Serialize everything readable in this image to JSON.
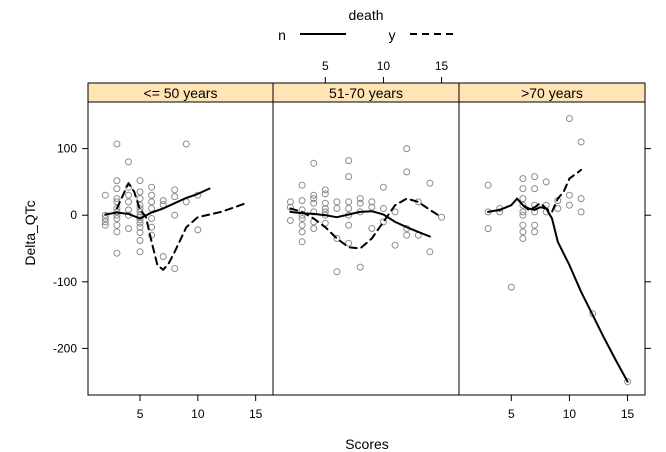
{
  "chart_data": {
    "type": "scatter",
    "xlabel": "Scores",
    "ylabel": "Delta_QTc",
    "xlim": [
      0.5,
      16.5
    ],
    "ylim": [
      -270,
      170
    ],
    "xticks": [
      5,
      10,
      15
    ],
    "yticks": [
      -200,
      -100,
      0,
      100
    ],
    "legend": {
      "title": "death",
      "position": "top",
      "entries": [
        {
          "label": "n",
          "style": "solid"
        },
        {
          "label": "y",
          "style": "dashed"
        }
      ]
    },
    "panels": [
      {
        "label": "<= 50 years",
        "points": [
          [
            2,
            30
          ],
          [
            2,
            0
          ],
          [
            2,
            -10
          ],
          [
            2,
            -15
          ],
          [
            2,
            -5
          ],
          [
            3,
            107
          ],
          [
            3,
            52
          ],
          [
            3,
            40
          ],
          [
            3,
            25
          ],
          [
            3,
            20
          ],
          [
            3,
            10
          ],
          [
            3,
            5
          ],
          [
            3,
            0
          ],
          [
            3,
            -5
          ],
          [
            3,
            -15
          ],
          [
            3,
            -25
          ],
          [
            3,
            -57
          ],
          [
            4,
            80
          ],
          [
            4,
            42
          ],
          [
            4,
            30
          ],
          [
            4,
            20
          ],
          [
            4,
            8
          ],
          [
            4,
            0
          ],
          [
            4,
            -20
          ],
          [
            5,
            52
          ],
          [
            5,
            35
          ],
          [
            5,
            25
          ],
          [
            5,
            15
          ],
          [
            5,
            10
          ],
          [
            5,
            5
          ],
          [
            5,
            0
          ],
          [
            5,
            -3
          ],
          [
            5,
            -7
          ],
          [
            5,
            -12
          ],
          [
            5,
            -18
          ],
          [
            5,
            -26
          ],
          [
            5,
            -38
          ],
          [
            5,
            -55
          ],
          [
            6,
            42
          ],
          [
            6,
            30
          ],
          [
            6,
            20
          ],
          [
            6,
            10
          ],
          [
            6,
            -5
          ],
          [
            6,
            -18
          ],
          [
            6,
            -30
          ],
          [
            7,
            22
          ],
          [
            7,
            16
          ],
          [
            7,
            -62
          ],
          [
            8,
            38
          ],
          [
            8,
            28
          ],
          [
            8,
            0
          ],
          [
            8,
            -80
          ],
          [
            9,
            107
          ],
          [
            9,
            20
          ],
          [
            10,
            30
          ],
          [
            10,
            -22
          ]
        ],
        "series": [
          {
            "name": "n",
            "style": "solid",
            "points": [
              [
                2,
                1
              ],
              [
                3,
                4
              ],
              [
                4,
                2
              ],
              [
                5,
                -5
              ],
              [
                6,
                4
              ],
              [
                7,
                10
              ],
              [
                8,
                18
              ],
              [
                9,
                26
              ],
              [
                10,
                32
              ],
              [
                11,
                40
              ]
            ]
          },
          {
            "name": "y",
            "style": "dashed",
            "points": [
              [
                3,
                10
              ],
              [
                4,
                48
              ],
              [
                4.5,
                35
              ],
              [
                5,
                8
              ],
              [
                5.5,
                -2
              ],
              [
                6,
                -40
              ],
              [
                6.5,
                -75
              ],
              [
                7,
                -82
              ],
              [
                7.5,
                -72
              ],
              [
                8,
                -55
              ],
              [
                9,
                -18
              ],
              [
                10,
                -3
              ],
              [
                12,
                5
              ],
              [
                14,
                17
              ]
            ]
          }
        ]
      },
      {
        "label": "51-70 years",
        "points": [
          [
            2,
            20
          ],
          [
            2,
            12
          ],
          [
            2,
            -8
          ],
          [
            3,
            45
          ],
          [
            3,
            22
          ],
          [
            3,
            8
          ],
          [
            3,
            0
          ],
          [
            3,
            -5
          ],
          [
            3,
            -15
          ],
          [
            3,
            -25
          ],
          [
            3,
            -40
          ],
          [
            4,
            78
          ],
          [
            4,
            30
          ],
          [
            4,
            25
          ],
          [
            4,
            18
          ],
          [
            4,
            5
          ],
          [
            4,
            -10
          ],
          [
            4,
            -20
          ],
          [
            5,
            38
          ],
          [
            5,
            32
          ],
          [
            5,
            18
          ],
          [
            5,
            10
          ],
          [
            5,
            5
          ],
          [
            5,
            0
          ],
          [
            5,
            -12
          ],
          [
            6,
            20
          ],
          [
            6,
            10
          ],
          [
            6,
            -35
          ],
          [
            6,
            -85
          ],
          [
            7,
            82
          ],
          [
            7,
            58
          ],
          [
            7,
            20
          ],
          [
            7,
            10
          ],
          [
            7,
            0
          ],
          [
            7,
            -15
          ],
          [
            7,
            -42
          ],
          [
            8,
            25
          ],
          [
            8,
            18
          ],
          [
            8,
            5
          ],
          [
            8,
            -78
          ],
          [
            9,
            20
          ],
          [
            9,
            12
          ],
          [
            9,
            -20
          ],
          [
            10,
            42
          ],
          [
            10,
            10
          ],
          [
            10,
            -10
          ],
          [
            11,
            -45
          ],
          [
            11,
            5
          ],
          [
            12,
            100
          ],
          [
            12,
            65
          ],
          [
            12,
            -20
          ],
          [
            12,
            -30
          ],
          [
            13,
            20
          ],
          [
            13,
            -30
          ],
          [
            14,
            48
          ],
          [
            14,
            -55
          ],
          [
            15,
            -3
          ]
        ],
        "series": [
          {
            "name": "n",
            "style": "solid",
            "points": [
              [
                2,
                5
              ],
              [
                3,
                3
              ],
              [
                4,
                2
              ],
              [
                5,
                0
              ],
              [
                6,
                -3
              ],
              [
                7,
                1
              ],
              [
                8,
                5
              ],
              [
                9,
                6
              ],
              [
                10,
                1
              ],
              [
                11,
                -10
              ],
              [
                12,
                -18
              ],
              [
                13,
                -25
              ],
              [
                14,
                -32
              ]
            ]
          },
          {
            "name": "y",
            "style": "dashed",
            "points": [
              [
                2,
                10
              ],
              [
                3,
                5
              ],
              [
                4,
                -5
              ],
              [
                5,
                -18
              ],
              [
                6,
                -35
              ],
              [
                7,
                -48
              ],
              [
                8,
                -50
              ],
              [
                9,
                -35
              ],
              [
                10,
                -10
              ],
              [
                11,
                15
              ],
              [
                12,
                25
              ],
              [
                13,
                20
              ],
              [
                14,
                8
              ],
              [
                15,
                -3
              ]
            ]
          }
        ]
      },
      {
        "label": ">70 years",
        "points": [
          [
            3,
            45
          ],
          [
            3,
            5
          ],
          [
            3,
            -20
          ],
          [
            4,
            10
          ],
          [
            4,
            5
          ],
          [
            5,
            -108
          ],
          [
            6,
            55
          ],
          [
            6,
            40
          ],
          [
            6,
            25
          ],
          [
            6,
            15
          ],
          [
            6,
            5
          ],
          [
            6,
            0
          ],
          [
            6,
            -15
          ],
          [
            6,
            -25
          ],
          [
            6,
            -35
          ],
          [
            7,
            58
          ],
          [
            7,
            40
          ],
          [
            7,
            15
          ],
          [
            7,
            5
          ],
          [
            7,
            -15
          ],
          [
            7,
            -25
          ],
          [
            8,
            50
          ],
          [
            8,
            15
          ],
          [
            8,
            5
          ],
          [
            9,
            22
          ],
          [
            9,
            10
          ],
          [
            10,
            145
          ],
          [
            10,
            30
          ],
          [
            10,
            15
          ],
          [
            11,
            110
          ],
          [
            11,
            25
          ],
          [
            11,
            5
          ],
          [
            12,
            -148
          ],
          [
            15,
            -250
          ]
        ],
        "series": [
          {
            "name": "n",
            "style": "solid",
            "points": [
              [
                3,
                5
              ],
              [
                4,
                8
              ],
              [
                5,
                15
              ],
              [
                5.5,
                25
              ],
              [
                6,
                15
              ],
              [
                6.5,
                10
              ],
              [
                7,
                8
              ],
              [
                7.5,
                12
              ],
              [
                8,
                10
              ],
              [
                8.5,
                -5
              ],
              [
                9,
                -40
              ],
              [
                10,
                -75
              ],
              [
                11,
                -115
              ],
              [
                12,
                -150
              ],
              [
                13,
                -185
              ],
              [
                14,
                -218
              ],
              [
                15,
                -250
              ]
            ]
          },
          {
            "name": "y",
            "style": "dashed",
            "points": [
              [
                6,
                15
              ],
              [
                6.5,
                8
              ],
              [
                7,
                12
              ],
              [
                7.5,
                18
              ],
              [
                8,
                10
              ],
              [
                8.5,
                5
              ],
              [
                9,
                25
              ],
              [
                9.5,
                35
              ],
              [
                10,
                55
              ],
              [
                11,
                68
              ]
            ]
          }
        ]
      }
    ]
  }
}
